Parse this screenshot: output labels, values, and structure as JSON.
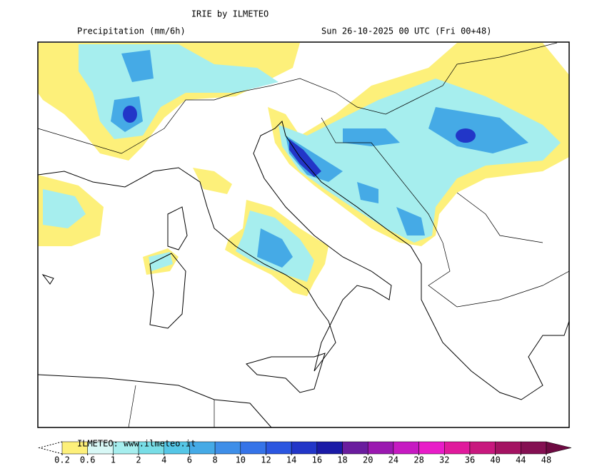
{
  "header": {
    "title": "IRIE by ILMETEO",
    "subtitle": "Precipitation (mm/6h)",
    "valid_time": "Sun 26-10-2025 00 UTC (Fri 00+48)"
  },
  "legend": {
    "credit": "ILMETEO: www.ilmeteo.it",
    "labels": [
      0.2,
      0.6,
      1,
      2,
      4,
      6,
      8,
      10,
      12,
      14,
      16,
      18,
      20,
      24,
      28,
      32,
      36,
      40,
      44,
      48
    ],
    "colors": [
      "#fdf07a",
      "#d8f8f6",
      "#a6eeee",
      "#78dde6",
      "#55c6e6",
      "#45aae6",
      "#3e8ee8",
      "#3573e8",
      "#2b56e0",
      "#2236c8",
      "#1a1aa6",
      "#6a1c9e",
      "#9a18b0",
      "#c61ac2",
      "#e81cc8",
      "#e01a9c",
      "#c8187e",
      "#a41262",
      "#841052",
      "#6e0a42"
    ]
  }
}
